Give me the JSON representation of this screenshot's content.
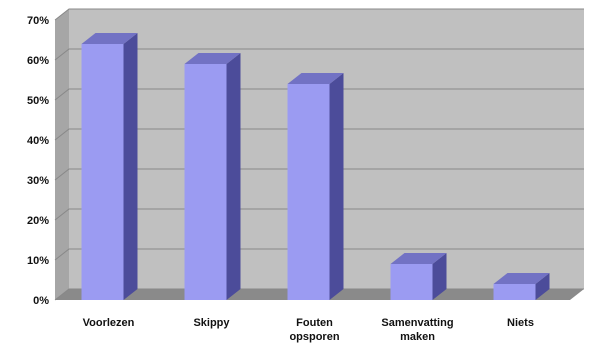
{
  "chart_data": {
    "type": "bar",
    "title": "",
    "xlabel": "",
    "ylabel": "",
    "categories": [
      "Voorlezen",
      "Skippy",
      "Fouten opsporen",
      "Samenvatting maken",
      "Niets"
    ],
    "category_lines": [
      [
        "Voorlezen"
      ],
      [
        "Skippy"
      ],
      [
        "Fouten",
        "opsporen"
      ],
      [
        "Samenvatting",
        "maken"
      ],
      [
        "Niets"
      ]
    ],
    "values": [
      64,
      59,
      54,
      9,
      4
    ],
    "ylim": [
      0,
      70
    ],
    "yticks": [
      0,
      10,
      20,
      30,
      40,
      50,
      60,
      70
    ],
    "ytick_labels": [
      "0%",
      "10%",
      "20%",
      "30%",
      "40%",
      "50%",
      "60%",
      "70%"
    ],
    "grid": true,
    "legend": "none",
    "style": "3d-column",
    "colors": {
      "bar_front": "#9b9bf2",
      "bar_side": "#4c4c9a",
      "bar_top": "#7272c4",
      "wall": "#c0c0c0",
      "floor": "#8a8a8a",
      "gridline": "#888888",
      "wall_left": "#a6a6a6"
    }
  }
}
